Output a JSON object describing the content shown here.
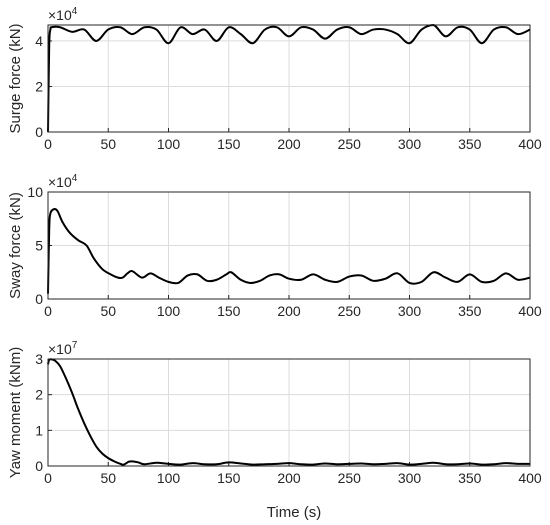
{
  "figure": {
    "xlabel": "Time (s)"
  },
  "chart_data": [
    {
      "type": "line",
      "ylabel": "Surge force (kN)",
      "y_exponent_base": "×10",
      "y_exponent": "4",
      "xlim": [
        0,
        400
      ],
      "ylim": [
        0,
        4.7
      ],
      "xticks": [
        0,
        50,
        100,
        150,
        200,
        250,
        300,
        350,
        400
      ],
      "yticks": [
        0,
        2,
        4
      ],
      "grid": true,
      "color": "#000000",
      "series": [
        {
          "x": [
            0,
            1,
            2,
            3,
            10,
            20,
            30,
            40,
            50,
            60,
            70,
            80,
            90,
            100,
            110,
            120,
            130,
            140,
            150,
            160,
            170,
            180,
            190,
            200,
            210,
            220,
            230,
            240,
            250,
            260,
            270,
            280,
            290,
            300,
            310,
            320,
            330,
            340,
            350,
            360,
            370,
            380,
            390,
            400
          ],
          "y": [
            0,
            3.8,
            4.5,
            4.6,
            4.6,
            4.4,
            4.5,
            4.0,
            4.5,
            4.6,
            4.3,
            4.6,
            4.5,
            3.9,
            4.6,
            4.3,
            4.5,
            4.0,
            4.6,
            4.3,
            3.9,
            4.5,
            4.6,
            4.2,
            4.6,
            4.5,
            4.1,
            4.5,
            4.6,
            4.3,
            4.5,
            4.5,
            4.3,
            3.9,
            4.5,
            4.7,
            4.2,
            4.6,
            4.5,
            3.9,
            4.5,
            4.6,
            4.3,
            4.5
          ]
        }
      ]
    },
    {
      "type": "line",
      "ylabel": "Sway force (kN)",
      "y_exponent_base": "×10",
      "y_exponent": "4",
      "xlim": [
        0,
        400
      ],
      "ylim": [
        0,
        10
      ],
      "xticks": [
        0,
        50,
        100,
        150,
        200,
        250,
        300,
        350,
        400
      ],
      "yticks": [
        0,
        5,
        10
      ],
      "grid": true,
      "color": "#000000",
      "series": [
        {
          "x": [
            0,
            1,
            2,
            5,
            8,
            12,
            18,
            25,
            32,
            38,
            45,
            52,
            58,
            62,
            66,
            70,
            78,
            85,
            92,
            100,
            108,
            116,
            124,
            132,
            140,
            148,
            152,
            160,
            168,
            176,
            184,
            192,
            200,
            210,
            220,
            230,
            240,
            250,
            260,
            270,
            280,
            290,
            300,
            310,
            320,
            330,
            340,
            350,
            360,
            370,
            380,
            390,
            400
          ],
          "y": [
            0.5,
            6.5,
            8.0,
            8.4,
            8.2,
            7.2,
            6.2,
            5.5,
            5.0,
            3.8,
            2.8,
            2.3,
            2.0,
            2.0,
            2.4,
            2.6,
            2.0,
            2.4,
            2.0,
            1.6,
            1.5,
            2.2,
            2.3,
            1.7,
            1.8,
            2.3,
            2.5,
            1.8,
            1.5,
            1.7,
            2.2,
            2.3,
            1.9,
            1.8,
            2.3,
            1.8,
            1.6,
            2.1,
            2.2,
            1.7,
            1.9,
            2.4,
            1.5,
            1.6,
            2.5,
            2.0,
            1.6,
            2.3,
            1.6,
            1.7,
            2.4,
            1.8,
            2.0
          ]
        }
      ]
    },
    {
      "type": "line",
      "ylabel": "Yaw moment (kNm)",
      "y_exponent_base": "×10",
      "y_exponent": "7",
      "xlim": [
        0,
        400
      ],
      "ylim": [
        0,
        3
      ],
      "xticks": [
        0,
        50,
        100,
        150,
        200,
        250,
        300,
        350,
        400
      ],
      "yticks": [
        0,
        1,
        2,
        3
      ],
      "grid": true,
      "color": "#000000",
      "series": [
        {
          "x": [
            0,
            1,
            3,
            6,
            10,
            15,
            20,
            25,
            30,
            35,
            40,
            45,
            50,
            55,
            60,
            63,
            67,
            70,
            75,
            80,
            90,
            100,
            110,
            120,
            130,
            140,
            150,
            160,
            170,
            180,
            190,
            200,
            210,
            220,
            230,
            240,
            250,
            260,
            270,
            280,
            290,
            300,
            310,
            320,
            330,
            340,
            350,
            360,
            370,
            380,
            390,
            400
          ],
          "y": [
            2.85,
            2.98,
            2.99,
            2.95,
            2.8,
            2.45,
            2.05,
            1.6,
            1.2,
            0.85,
            0.55,
            0.35,
            0.22,
            0.13,
            0.06,
            0.04,
            0.12,
            0.13,
            0.1,
            0.05,
            0.09,
            0.06,
            0.04,
            0.08,
            0.05,
            0.05,
            0.1,
            0.07,
            0.04,
            0.05,
            0.06,
            0.08,
            0.05,
            0.04,
            0.07,
            0.05,
            0.06,
            0.07,
            0.05,
            0.06,
            0.08,
            0.04,
            0.06,
            0.09,
            0.05,
            0.05,
            0.07,
            0.04,
            0.05,
            0.08,
            0.06,
            0.06
          ]
        }
      ]
    }
  ]
}
